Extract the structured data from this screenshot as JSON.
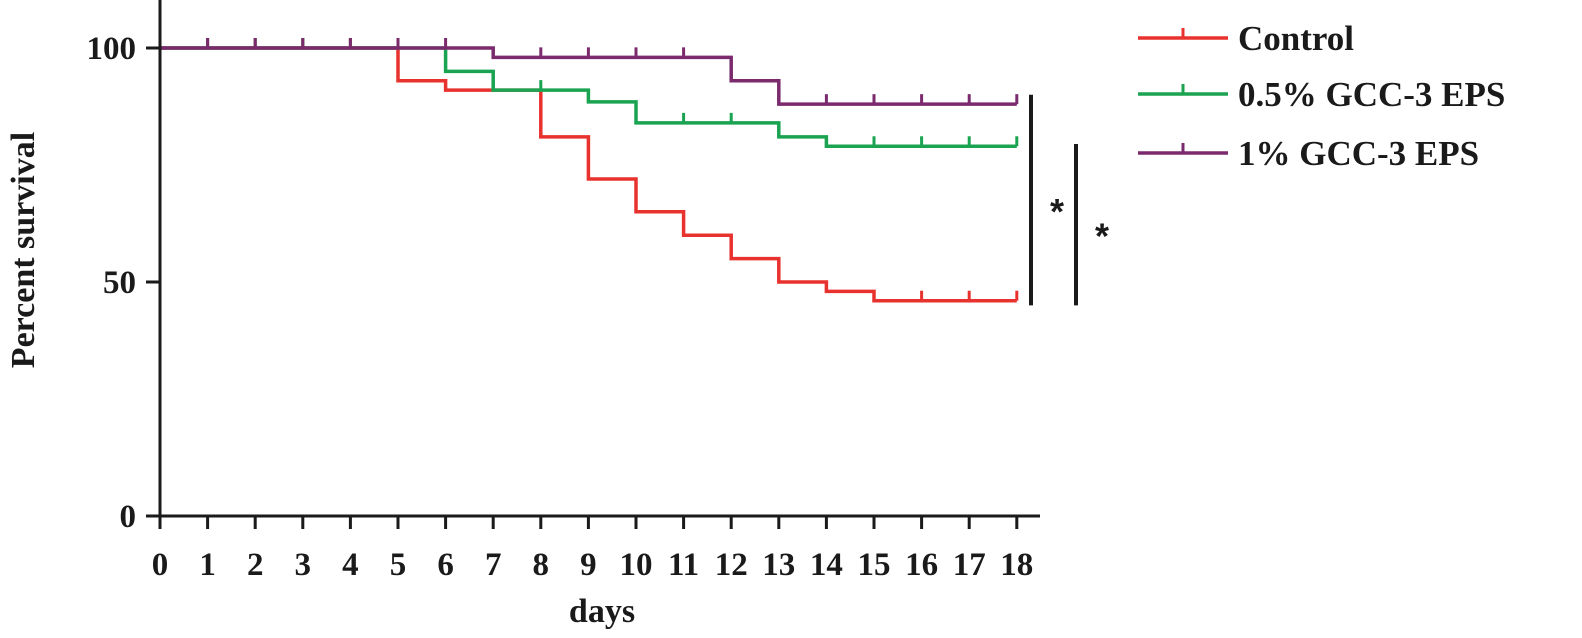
{
  "chart_data": {
    "type": "line",
    "subtype": "kaplan-meier-step",
    "title": "",
    "xlabel": "days",
    "ylabel": "Percent survival",
    "xlim": [
      0,
      18
    ],
    "ylim": [
      0,
      100
    ],
    "x_ticks": [
      0,
      1,
      2,
      3,
      4,
      5,
      6,
      7,
      8,
      9,
      10,
      11,
      12,
      13,
      14,
      15,
      16,
      17,
      18
    ],
    "y_ticks": [
      0,
      50,
      100
    ],
    "grid": false,
    "legend_position": "top-right",
    "series": [
      {
        "name": "Control",
        "color": "#e8322e",
        "steps": [
          [
            0,
            100
          ],
          [
            5,
            93
          ],
          [
            6,
            91
          ],
          [
            8,
            81
          ],
          [
            9,
            72
          ],
          [
            10,
            65
          ],
          [
            11,
            60
          ],
          [
            12,
            55
          ],
          [
            13,
            50
          ],
          [
            14,
            48
          ],
          [
            15,
            46
          ]
        ],
        "end_x": 18,
        "censor_marks": [
          1,
          2,
          3,
          4,
          7,
          8,
          16,
          17,
          18
        ]
      },
      {
        "name": "0.5% GCC-3 EPS",
        "color": "#1aa351",
        "steps": [
          [
            0,
            100
          ],
          [
            6,
            95
          ],
          [
            7,
            91
          ],
          [
            9,
            88.5
          ],
          [
            10,
            84
          ],
          [
            13,
            81
          ],
          [
            14,
            79
          ]
        ],
        "end_x": 18,
        "censor_marks": [
          1,
          2,
          3,
          4,
          5,
          8,
          11,
          12,
          15,
          16,
          17,
          18
        ]
      },
      {
        "name": "1% GCC-3 EPS",
        "color": "#7b2a6e",
        "steps": [
          [
            0,
            100
          ],
          [
            7,
            98
          ],
          [
            12,
            93
          ],
          [
            13,
            88
          ]
        ],
        "end_x": 18,
        "censor_marks": [
          1,
          2,
          3,
          4,
          5,
          6,
          8,
          9,
          10,
          11,
          14,
          15,
          16,
          17,
          18
        ]
      }
    ],
    "annotations": [
      {
        "label": "*",
        "from_y": 45,
        "to_y": 90
      },
      {
        "label": "*",
        "from_y": 45,
        "to_y": 79.5
      }
    ]
  }
}
